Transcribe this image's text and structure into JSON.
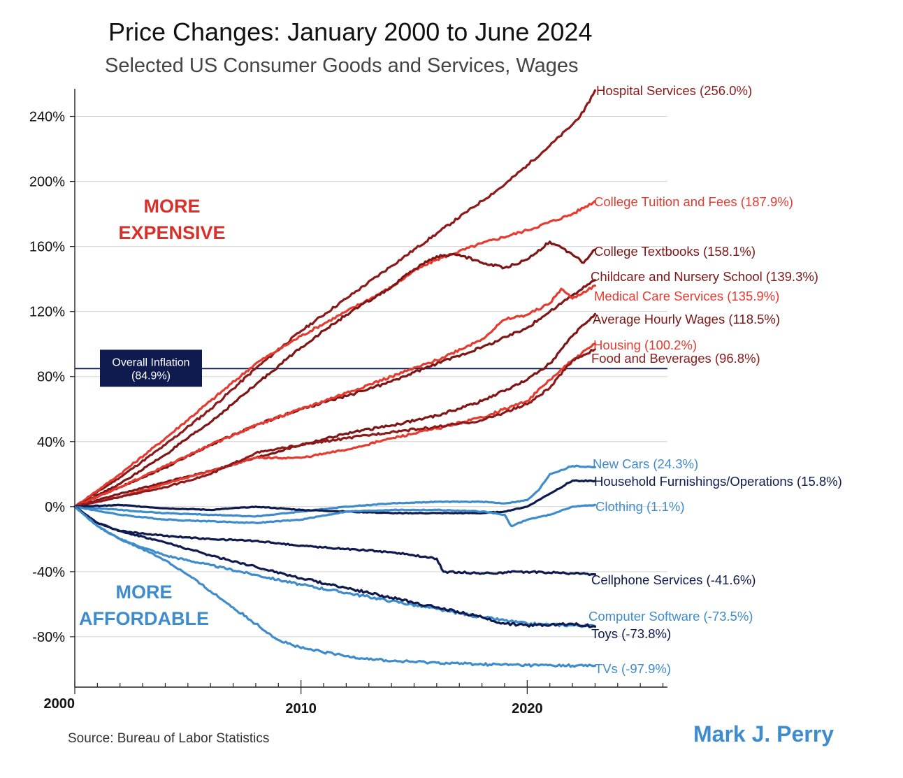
{
  "chart_data": {
    "type": "line",
    "title": "Price Changes:  January 2000 to June 2024",
    "subtitle": "Selected US Consumer Goods and Services, Wages",
    "xlabel": "",
    "ylabel": "",
    "xlim": [
      2000,
      2026.2
    ],
    "ylim": [
      -111,
      257
    ],
    "y_ticks": [
      -80,
      -40,
      0,
      40,
      80,
      120,
      160,
      200,
      240
    ],
    "y_tick_labels": [
      "-80%",
      "-40%",
      "0%",
      "40%",
      "80%",
      "120%",
      "160%",
      "200%",
      "240%"
    ],
    "x_tick_labels": [
      {
        "x": 2000,
        "label": "2000"
      },
      {
        "x": 2010,
        "label": "2010"
      },
      {
        "x": 2020,
        "label": "2020"
      }
    ],
    "x_minor_ticks": [
      2001,
      2002,
      2003,
      2004,
      2005,
      2006,
      2007,
      2008,
      2009,
      2011,
      2012,
      2013,
      2014,
      2015,
      2016,
      2017,
      2018,
      2019,
      2021,
      2022,
      2023,
      2024,
      2025,
      2026
    ],
    "grid": true,
    "reference_line": {
      "value": 84.9,
      "label_lines": [
        "Overall Inflation",
        "(84.9%)"
      ],
      "box_color": "#0f1a4f"
    },
    "annotations": [
      {
        "lines": [
          "MORE",
          "EXPENSIVE"
        ],
        "color": "#d8302b"
      },
      {
        "lines": [
          "MORE",
          "AFFORDABLE"
        ],
        "color": "#3e8ccb"
      }
    ],
    "source": "Source: Bureau of Labor Statistics",
    "credit": "Mark J. Perry",
    "series": [
      {
        "name": "Hospital Services (256.0%)",
        "color": "#8c1a1a",
        "x": [
          2000,
          2002,
          2004,
          2006,
          2008,
          2010,
          2012,
          2014,
          2016,
          2018,
          2019,
          2020,
          2021,
          2022,
          2022.5,
          2023
        ],
        "values": [
          0,
          18,
          38,
          60,
          85,
          108,
          128,
          148,
          168,
          188,
          198,
          210,
          222,
          235,
          243,
          256
        ]
      },
      {
        "name": "College Tuition and Fees (187.9%)",
        "color": "#e63b30",
        "x": [
          2000,
          2002,
          2004,
          2006,
          2008,
          2010,
          2012,
          2014,
          2015,
          2016,
          2018,
          2020,
          2022,
          2023
        ],
        "values": [
          0,
          20,
          42,
          65,
          88,
          105,
          120,
          135,
          145,
          152,
          162,
          170,
          180,
          187.9
        ]
      },
      {
        "name": "College Textbooks (158.1%)",
        "color": "#7e1616",
        "x": [
          2000,
          2002,
          2004,
          2006,
          2008,
          2010,
          2012,
          2014,
          2015,
          2016,
          2017,
          2018,
          2019,
          2020,
          2021,
          2022,
          2022.5,
          2023
        ],
        "values": [
          0,
          14,
          32,
          52,
          75,
          98,
          118,
          135,
          146,
          154,
          155,
          150,
          147,
          152,
          163,
          155,
          150,
          158.1
        ]
      },
      {
        "name": "Childcare and Nursery School (139.3%)",
        "color": "#7e1616",
        "x": [
          2000,
          2002,
          2004,
          2006,
          2008,
          2010,
          2012,
          2014,
          2016,
          2018,
          2020,
          2021,
          2022,
          2023
        ],
        "values": [
          0,
          12,
          24,
          38,
          50,
          60,
          68,
          77,
          88,
          98,
          110,
          120,
          130,
          139.3
        ]
      },
      {
        "name": "Medical Care Services (135.9%)",
        "color": "#e63b30",
        "x": [
          2000,
          2002,
          2004,
          2006,
          2008,
          2010,
          2012,
          2014,
          2016,
          2018,
          2019,
          2020,
          2021,
          2021.5,
          2022,
          2023
        ],
        "values": [
          0,
          12,
          25,
          38,
          50,
          60,
          70,
          80,
          90,
          103,
          115,
          118,
          125,
          134,
          128,
          135.9
        ]
      },
      {
        "name": "Average Hourly Wages (118.5%)",
        "color": "#7e1616",
        "x": [
          2000,
          2002,
          2004,
          2006,
          2008,
          2010,
          2012,
          2014,
          2016,
          2018,
          2020,
          2021,
          2022,
          2023
        ],
        "values": [
          0,
          8,
          15,
          22,
          30,
          38,
          45,
          50,
          56,
          65,
          78,
          88,
          105,
          118.5
        ]
      },
      {
        "name": "Housing (100.2%)",
        "color": "#e63b30",
        "x": [
          2000,
          2002,
          2004,
          2006,
          2008,
          2010,
          2012,
          2014,
          2016,
          2018,
          2020,
          2021,
          2022,
          2023
        ],
        "values": [
          0,
          6,
          14,
          22,
          30,
          30,
          35,
          42,
          48,
          55,
          65,
          78,
          90,
          100.2
        ]
      },
      {
        "name": "Food and Beverages (96.8%)",
        "color": "#8c1a1a",
        "x": [
          2000,
          2002,
          2004,
          2006,
          2008,
          2010,
          2012,
          2014,
          2016,
          2018,
          2019,
          2020,
          2021,
          2022,
          2023
        ],
        "values": [
          0,
          6,
          12,
          20,
          33,
          38,
          42,
          46,
          49,
          53,
          58,
          63,
          73,
          90,
          96.8
        ]
      },
      {
        "name": "New Cars (24.3%)",
        "color": "#3e8ccb",
        "x": [
          2000,
          2002,
          2004,
          2006,
          2008,
          2010,
          2012,
          2014,
          2016,
          2018,
          2019,
          2020,
          2020.5,
          2021,
          2022,
          2023
        ],
        "values": [
          0,
          -2,
          -4,
          -5,
          -6,
          -3,
          0,
          2,
          3,
          3,
          2,
          4,
          10,
          20,
          25,
          24.3
        ]
      },
      {
        "name": "Household Furnishings/Operations (15.8%)",
        "color": "#0f1a4f",
        "x": [
          2000,
          2002,
          2004,
          2006,
          2008,
          2010,
          2012,
          2014,
          2016,
          2018,
          2019,
          2020,
          2021,
          2022,
          2023
        ],
        "values": [
          0,
          1,
          -1,
          -2,
          0,
          -2,
          -3,
          -4,
          -4,
          -4,
          -3,
          0,
          8,
          16,
          15.8
        ]
      },
      {
        "name": "Clothing (1.1%)",
        "color": "#3e8ccb",
        "x": [
          2000,
          2002,
          2004,
          2006,
          2008,
          2010,
          2012,
          2014,
          2016,
          2018,
          2019,
          2019.3,
          2020,
          2021,
          2022,
          2023
        ],
        "values": [
          0,
          -5,
          -8,
          -9,
          -10,
          -8,
          -3,
          -2,
          -2,
          -3,
          -5,
          -12,
          -8,
          -5,
          0,
          1.1
        ]
      },
      {
        "name": "Cellphone Services (-41.6%)",
        "color": "#0f1a4f",
        "x": [
          2000,
          2001,
          2002,
          2004,
          2006,
          2008,
          2010,
          2012,
          2014,
          2015,
          2016,
          2016.3,
          2018,
          2020,
          2022,
          2023
        ],
        "values": [
          0,
          -10,
          -15,
          -18,
          -20,
          -21,
          -24,
          -26,
          -28,
          -30,
          -32,
          -40,
          -41,
          -40,
          -41,
          -41.6
        ]
      },
      {
        "name": "Computer Software (-73.5%)",
        "color": "#3e8ccb",
        "x": [
          2000,
          2001,
          2002,
          2003,
          2004,
          2006,
          2008,
          2010,
          2012,
          2014,
          2016,
          2018,
          2020,
          2022,
          2023
        ],
        "values": [
          0,
          -12,
          -20,
          -25,
          -30,
          -36,
          -42,
          -48,
          -53,
          -58,
          -63,
          -68,
          -72,
          -73,
          -73.5
        ]
      },
      {
        "name": "Toys (-73.8%)",
        "color": "#0f1a4f",
        "x": [
          2000,
          2001,
          2002,
          2004,
          2006,
          2008,
          2010,
          2012,
          2014,
          2016,
          2018,
          2019,
          2020,
          2022,
          2023
        ],
        "values": [
          0,
          -10,
          -15,
          -22,
          -30,
          -37,
          -44,
          -50,
          -56,
          -62,
          -68,
          -72,
          -73,
          -72,
          -73.8
        ]
      },
      {
        "name": "TVs (-97.9%)",
        "color": "#3e8ccb",
        "x": [
          2000,
          2001,
          2002,
          2003,
          2004,
          2005,
          2006,
          2007,
          2008,
          2009,
          2010,
          2012,
          2014,
          2016,
          2018,
          2020,
          2022,
          2023
        ],
        "values": [
          0,
          -12,
          -20,
          -26,
          -33,
          -42,
          -52,
          -62,
          -72,
          -82,
          -87,
          -92,
          -95,
          -96,
          -97,
          -97.5,
          -97.8,
          -97.9
        ]
      }
    ]
  }
}
